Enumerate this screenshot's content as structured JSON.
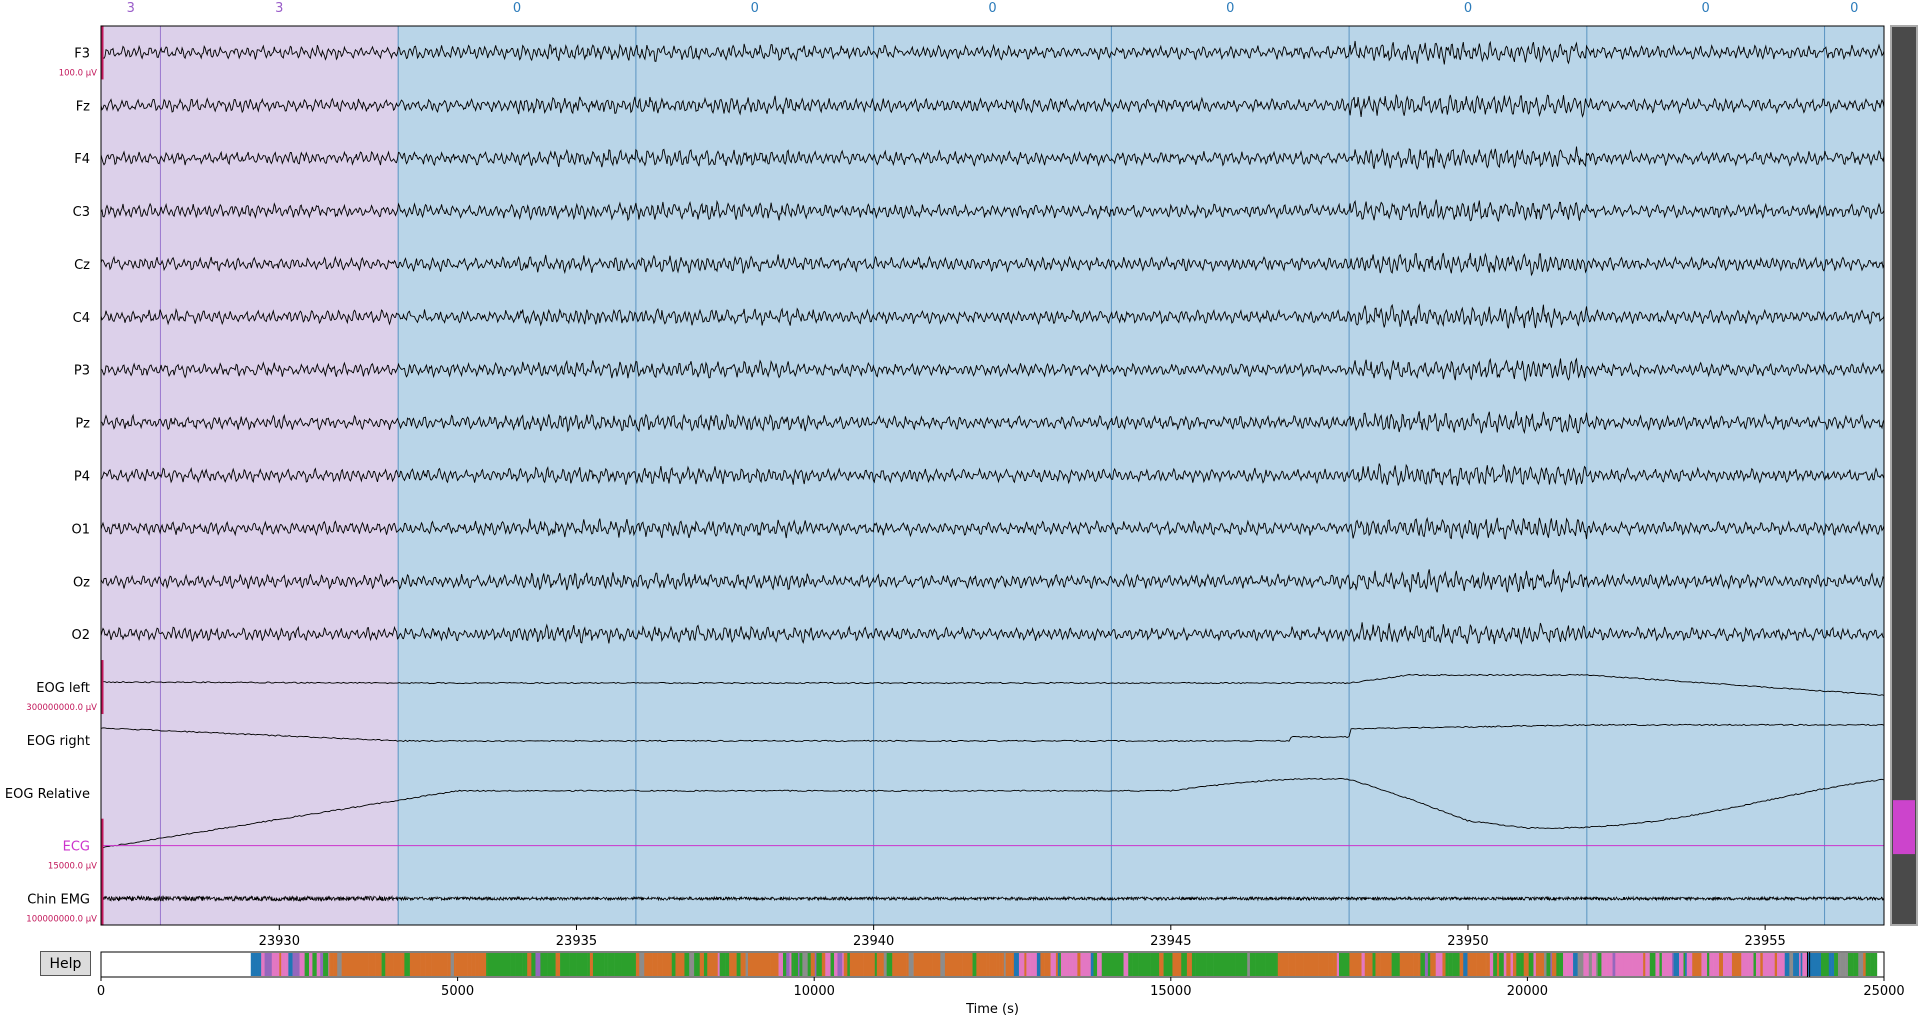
{
  "colors": {
    "stage_3": "#dcd0ea",
    "stage_3_line": "#9a77cf",
    "stage_0": "#b9d5e8",
    "stage_0_line": "#5a94c2",
    "stage_3_text": "#9a5dc9",
    "stage_0_text": "#2b7bba",
    "ecg": "#cc33cc",
    "scale_bar": "#c2185b",
    "scrollbar_track": "#4a4a4a",
    "scrollbar_thumb": "#cc44cc",
    "hypno_green": "#2ca02c",
    "hypno_orange": "#d6702a",
    "hypno_pink": "#e377c2",
    "hypno_blue": "#1f77b4",
    "hypno_purple": "#9467bd",
    "hypno_grey": "#8c8c8c"
  },
  "annotations": [
    {
      "label": "3",
      "start": 23927.0,
      "end": 23928.0
    },
    {
      "label": "3",
      "start": 23928.0,
      "end": 23932.0
    },
    {
      "label": "0",
      "start": 23932.0,
      "end": 23936.0
    },
    {
      "label": "0",
      "start": 23936.0,
      "end": 23940.0
    },
    {
      "label": "0",
      "start": 23940.0,
      "end": 23944.0
    },
    {
      "label": "0",
      "start": 23944.0,
      "end": 23948.0
    },
    {
      "label": "0",
      "start": 23948.0,
      "end": 23952.0
    },
    {
      "label": "0",
      "start": 23952.0,
      "end": 23956.0
    },
    {
      "label": "0",
      "start": 23956.0,
      "end": 23957.0
    }
  ],
  "channels": [
    {
      "name": "F3",
      "type": "eeg"
    },
    {
      "name": "Fz",
      "type": "eeg"
    },
    {
      "name": "F4",
      "type": "eeg"
    },
    {
      "name": "C3",
      "type": "eeg"
    },
    {
      "name": "Cz",
      "type": "eeg"
    },
    {
      "name": "C4",
      "type": "eeg"
    },
    {
      "name": "P3",
      "type": "eeg"
    },
    {
      "name": "Pz",
      "type": "eeg"
    },
    {
      "name": "P4",
      "type": "eeg"
    },
    {
      "name": "O1",
      "type": "eeg"
    },
    {
      "name": "Oz",
      "type": "eeg"
    },
    {
      "name": "O2",
      "type": "eeg"
    },
    {
      "name": "EOG left",
      "type": "eog"
    },
    {
      "name": "EOG right",
      "type": "eog"
    },
    {
      "name": "EOG Relative",
      "type": "eog"
    },
    {
      "name": "ECG",
      "type": "ecg"
    },
    {
      "name": "Chin EMG",
      "type": "emg"
    }
  ],
  "scalebars": [
    {
      "channel": "F3",
      "label": "100.0 µV"
    },
    {
      "channel": "EOG left",
      "label": "300000000.0 µV"
    },
    {
      "channel": "ECG",
      "label": "15000.0 µV"
    },
    {
      "channel": "Chin EMG",
      "label": "100000000.0 µV"
    }
  ],
  "time_axis": {
    "range": [
      23927.0,
      23957.0
    ],
    "ticks": [
      "23930",
      "23935",
      "23940",
      "23945",
      "23950",
      "23955"
    ]
  },
  "overview": {
    "range": [
      0,
      25000
    ],
    "ticks": [
      "0",
      "5000",
      "10000",
      "15000",
      "20000",
      "25000"
    ],
    "xlabel": "Time (s)",
    "data_start": 2100,
    "data_end": 24900,
    "view_start": 23927,
    "view_end": 23957
  },
  "channel_scrollbar": {
    "visible_channels": 17,
    "position_fraction": 0.88,
    "thumb_fraction": 0.06
  },
  "help_button": {
    "label": "Help"
  }
}
